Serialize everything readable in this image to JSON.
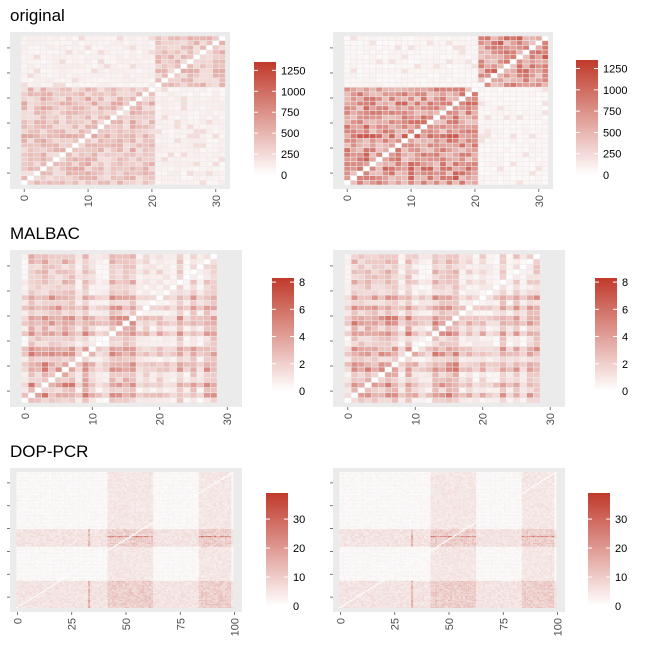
{
  "sections": [
    {
      "title": "original"
    },
    {
      "title": "MALBAC"
    },
    {
      "title": "DOP-PCR"
    }
  ],
  "chart_data": [
    {
      "type": "heatmap",
      "section": "original",
      "panel": "left",
      "n": 32,
      "block_split": 21,
      "x_ticks": [
        0,
        10,
        20,
        30
      ],
      "colorbar": {
        "min": 0,
        "max": 1350,
        "ticks": [
          0,
          250,
          500,
          750,
          1000,
          1250
        ]
      },
      "colors": {
        "low": "#ffffff",
        "high": "#c0392b",
        "panel_bg": "#ebebeb"
      },
      "grid_lines": false,
      "legend_position": "right",
      "within_block_level": 0.28,
      "cross_block_level": 0.07
    },
    {
      "type": "heatmap",
      "section": "original",
      "panel": "right",
      "n": 32,
      "block_split": 21,
      "x_ticks": [
        0,
        10,
        20,
        30
      ],
      "colorbar": {
        "min": 0,
        "max": 1350,
        "ticks": [
          0,
          250,
          500,
          750,
          1000,
          1250
        ]
      },
      "colors": {
        "low": "#ffffff",
        "high": "#c0392b",
        "panel_bg": "#ebebeb"
      },
      "grid_lines": false,
      "legend_position": "right",
      "within_block_level": 0.5,
      "cross_block_level": 0.05
    },
    {
      "type": "heatmap",
      "section": "MALBAC",
      "panel": "left",
      "n": 29,
      "x_ticks": [
        0,
        10,
        20,
        30
      ],
      "colorbar": {
        "min": 0,
        "max": 8.3,
        "ticks": [
          0,
          2,
          4,
          6,
          8
        ]
      },
      "colors": {
        "low": "#ffffff",
        "high": "#c0392b",
        "panel_bg": "#ebebeb"
      },
      "grid_lines": false,
      "legend_position": "right",
      "high_rows": [
        1,
        3,
        6,
        7,
        9,
        10,
        13,
        15,
        16,
        18,
        20
      ],
      "high_cols": [
        1,
        2,
        3,
        4,
        5,
        6,
        7,
        9,
        13,
        14,
        15,
        16,
        23,
        25,
        27,
        28
      ],
      "low_rows": [
        0,
        11,
        12,
        22,
        24,
        25,
        26,
        27
      ]
    },
    {
      "type": "heatmap",
      "section": "MALBAC",
      "panel": "right",
      "n": 29,
      "x_ticks": [
        0,
        10,
        20,
        30
      ],
      "colorbar": {
        "min": 0,
        "max": 8.3,
        "ticks": [
          0,
          2,
          4,
          6,
          8
        ]
      },
      "colors": {
        "low": "#ffffff",
        "high": "#c0392b",
        "panel_bg": "#ebebeb"
      },
      "grid_lines": false,
      "legend_position": "right",
      "high_rows": [
        1,
        3,
        6,
        7,
        9,
        10,
        13,
        15,
        16,
        18,
        20
      ],
      "high_cols": [
        1,
        2,
        3,
        4,
        5,
        6,
        7,
        9,
        13,
        14,
        15,
        16,
        23,
        25,
        27,
        28
      ],
      "low_rows": [
        0,
        11,
        12,
        22,
        24,
        25,
        26,
        27
      ]
    },
    {
      "type": "heatmap",
      "section": "DOP-PCR",
      "panel": "left",
      "n": 100,
      "x_ticks": [
        0,
        25,
        50,
        75,
        100
      ],
      "colorbar": {
        "min": 0,
        "max": 39,
        "ticks": [
          0,
          10,
          20,
          30
        ]
      },
      "colors": {
        "low": "#ffffff",
        "high": "#c0392b",
        "panel_bg": "#ebebeb"
      },
      "grid_lines": false,
      "legend_position": "right",
      "high_rows_ranges": [
        [
          0,
          19
        ],
        [
          45,
          57
        ]
      ],
      "high_cols_ranges": [
        [
          42,
          62
        ],
        [
          84,
          98
        ]
      ]
    },
    {
      "type": "heatmap",
      "section": "DOP-PCR",
      "panel": "right",
      "n": 100,
      "x_ticks": [
        0,
        25,
        50,
        75,
        100
      ],
      "colorbar": {
        "min": 0,
        "max": 39,
        "ticks": [
          0,
          10,
          20,
          30
        ]
      },
      "colors": {
        "low": "#ffffff",
        "high": "#c0392b",
        "panel_bg": "#ebebeb"
      },
      "grid_lines": false,
      "legend_position": "right",
      "high_rows_ranges": [
        [
          0,
          19
        ],
        [
          45,
          57
        ]
      ],
      "high_cols_ranges": [
        [
          42,
          62
        ],
        [
          84,
          98
        ]
      ]
    }
  ]
}
